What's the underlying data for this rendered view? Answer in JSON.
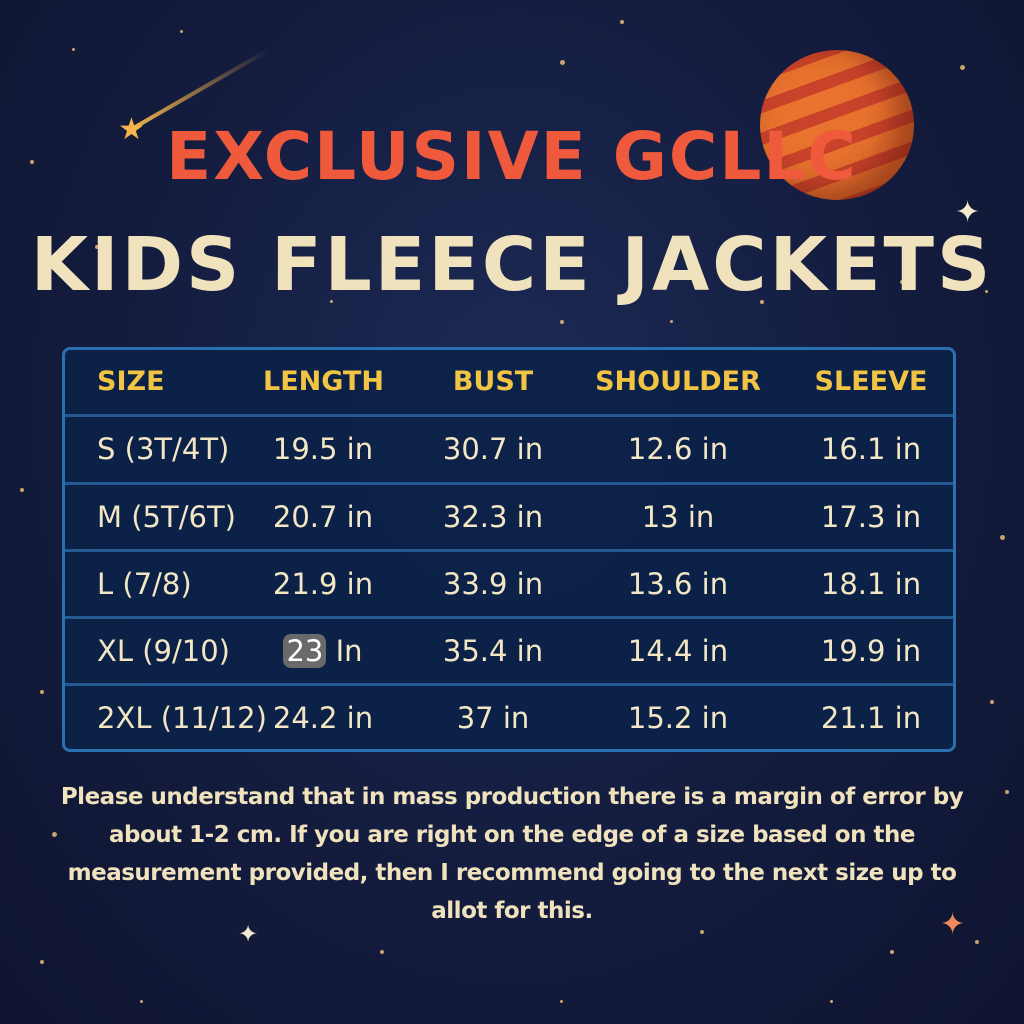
{
  "title_line1": "EXCLUSIVE GCLLC",
  "title_line2": "KIDS FLEECE JACKETS",
  "table": {
    "headers": [
      "SIZE",
      "LENGTH",
      "BUST",
      "SHOULDER",
      "SLEEVE"
    ],
    "rows": [
      [
        "S (3T/4T)",
        "19.5 in",
        "30.7 in",
        "12.6 in",
        "16.1 in"
      ],
      [
        "M (5T/6T)",
        "20.7 in",
        "32.3 in",
        "13 in",
        "17.3 in"
      ],
      [
        "L (7/8)",
        "21.9 in",
        "33.9 in",
        "13.6 in",
        "18.1 in"
      ],
      [
        "XL (9/10)",
        {
          "num": "23",
          "unit": "In"
        },
        "35.4 in",
        "14.4 in",
        "19.9 in"
      ],
      [
        "2XL (11/12)",
        "24.2 in",
        "37 in",
        "15.2 in",
        "21.1 in"
      ]
    ]
  },
  "note": "Please understand that in mass production there is a margin of error by about 1-2 cm. If you are right on the edge of a size based on the measurement provided, then I recommend going to the next size up to allot for this.",
  "colors": {
    "title_red": "#f05a3c",
    "title_cream": "#f0e2bc",
    "header_gold": "#f2c443",
    "table_border": "#2a6fb0",
    "background": "#141c3e"
  },
  "decorations": [
    "planet-icon",
    "shooting-star-icon",
    "sparkle-icon"
  ]
}
